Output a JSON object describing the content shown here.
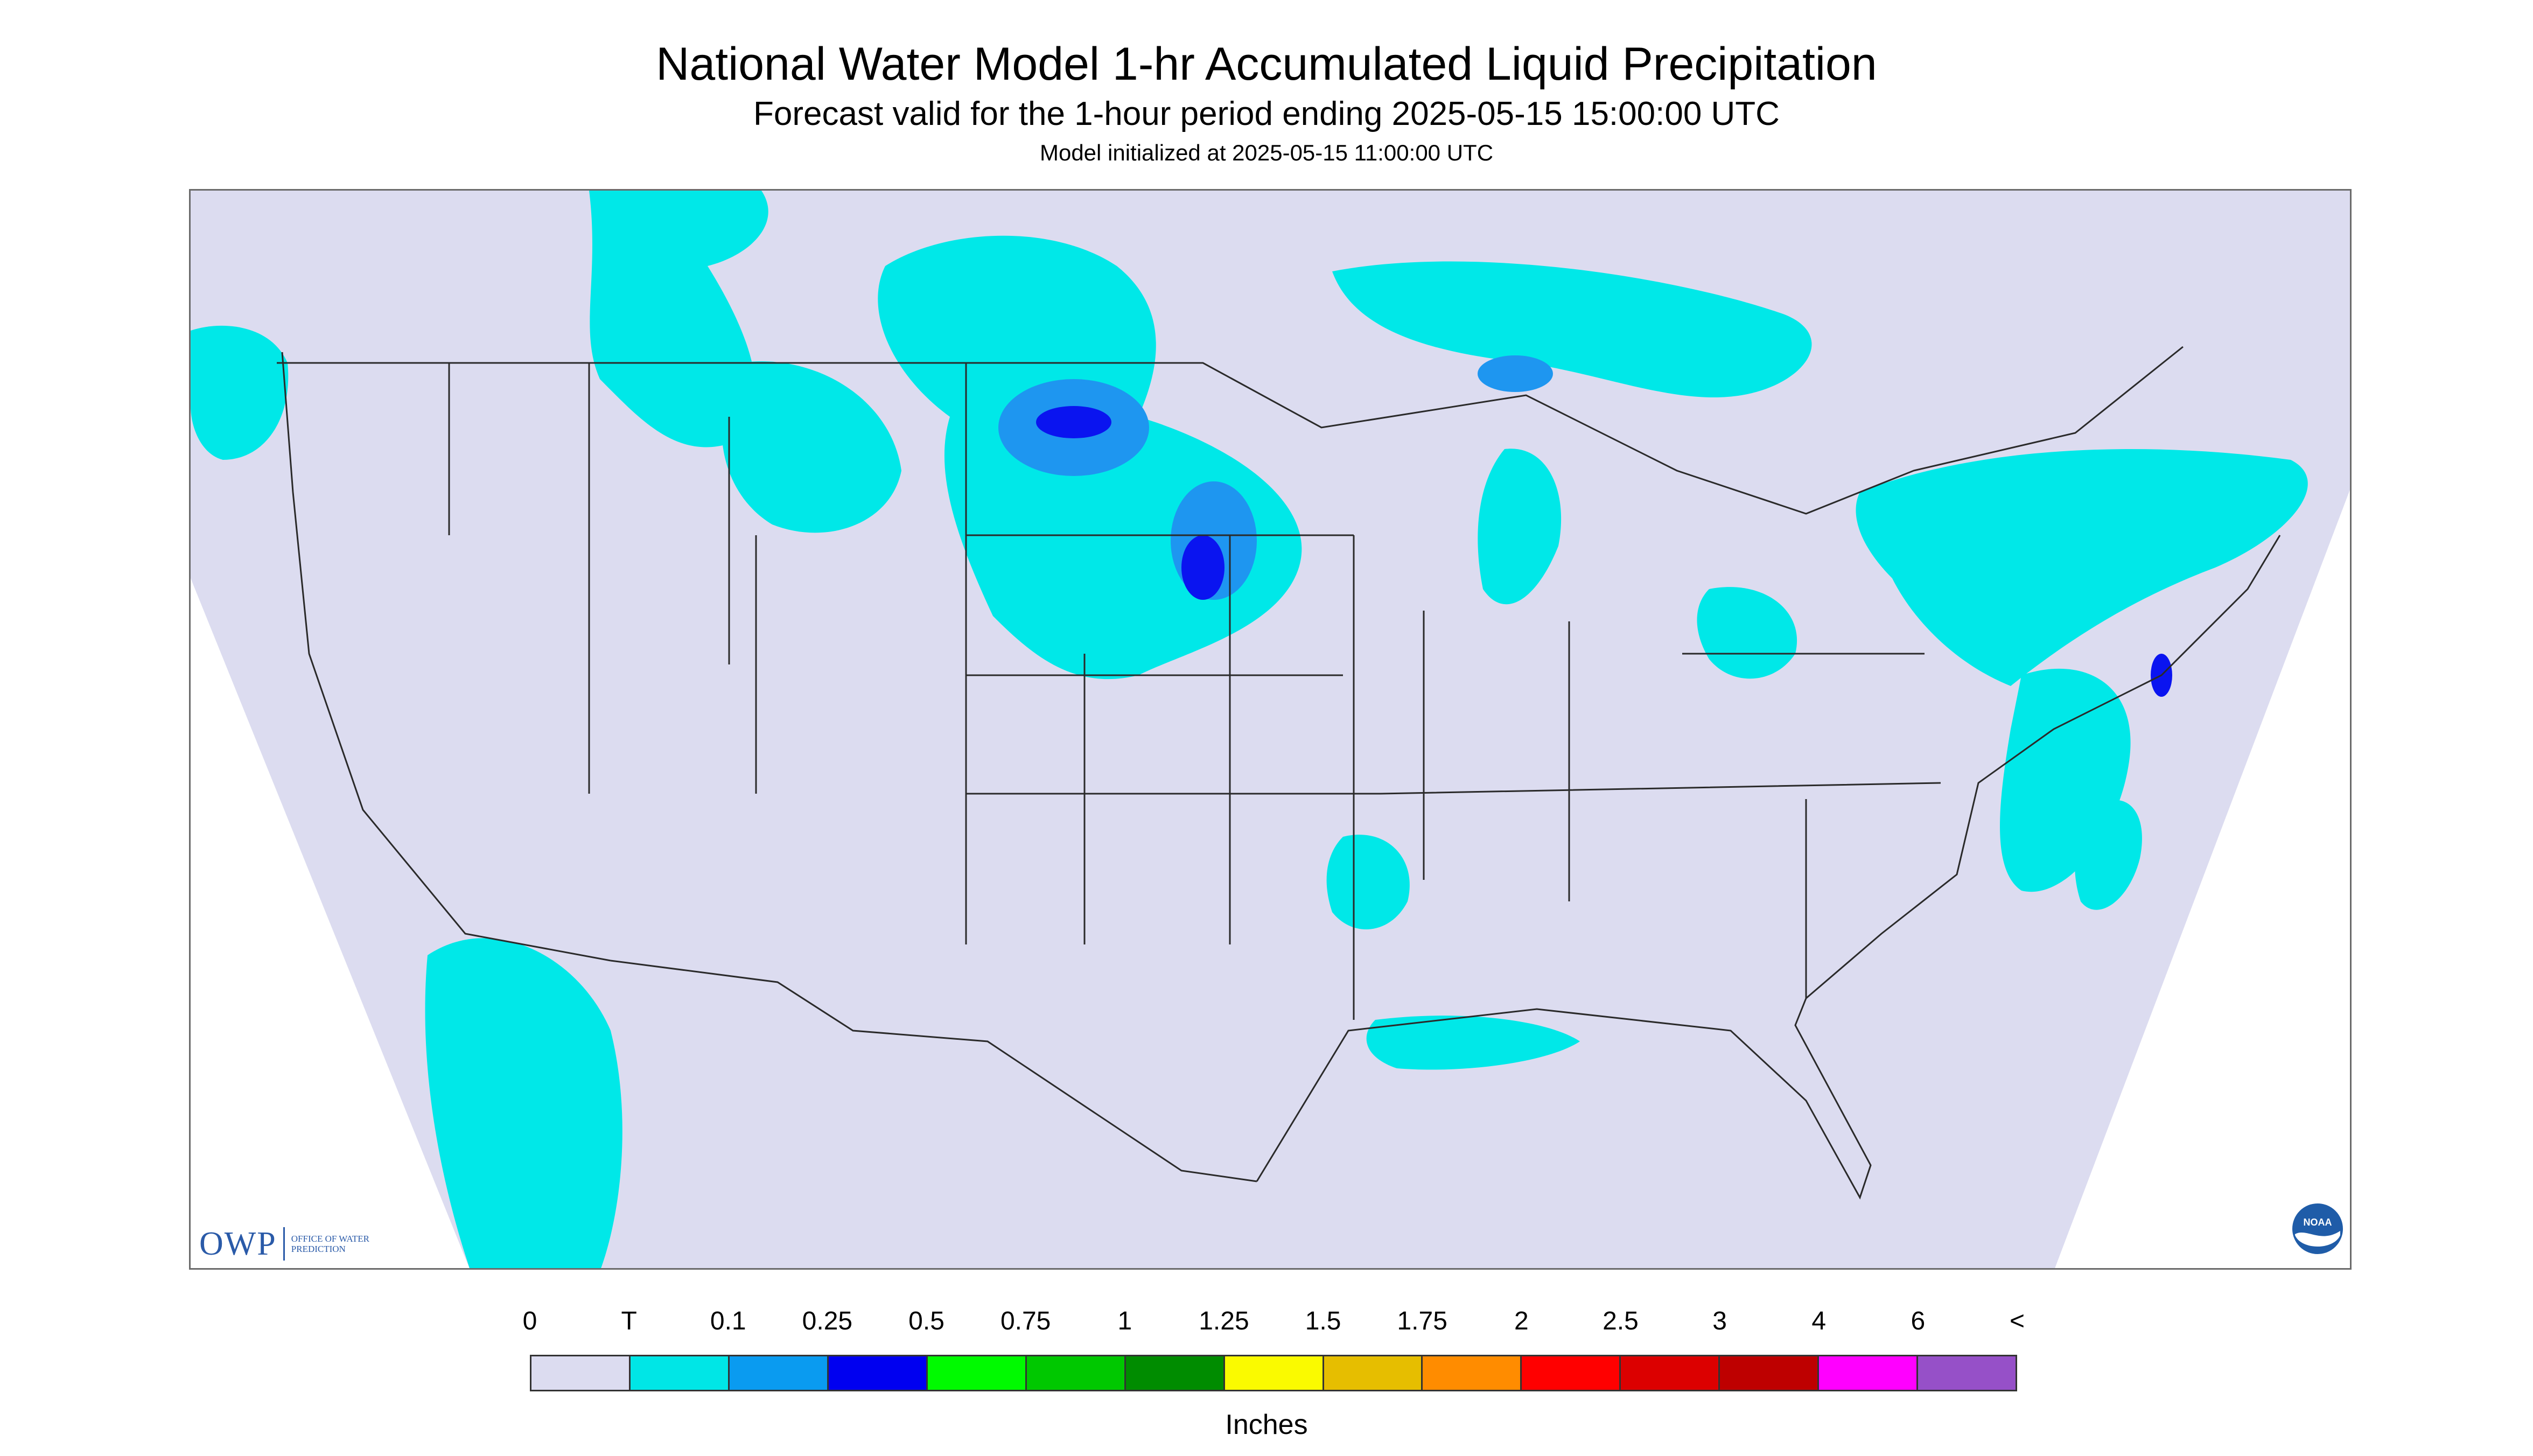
{
  "header": {
    "title": "National Water Model 1-hr Accumulated Liquid Precipitation",
    "subtitle": "Forecast valid for the 1-hour period ending 2025-05-15 15:00:00 UTC",
    "init_line": "Model initialized at 2025-05-15 11:00:00 UTC"
  },
  "map": {
    "region": "Continental United States",
    "colors": {
      "domain_fill": "#dcdcf0",
      "outside_fill": "#ffffff",
      "boundary": "#2a2a2a",
      "trace": "#00e8e8",
      "light_blue": "#1e96f0",
      "blue": "#0a14f0"
    }
  },
  "logos": {
    "owp": {
      "mark": "OWP",
      "text": "Office of Water Prediction"
    },
    "noaa": {
      "text": "NOAA"
    }
  },
  "legend": {
    "tick_labels": [
      "0",
      "T",
      "0.1",
      "0.25",
      "0.5",
      "0.75",
      "1",
      "1.25",
      "1.5",
      "1.75",
      "2",
      "2.5",
      "3",
      "4",
      "6",
      "<"
    ],
    "colors": [
      "#dcdcf0",
      "#00e6e6",
      "#0a9bf0",
      "#0000f0",
      "#00fa00",
      "#00c800",
      "#008c00",
      "#fafa00",
      "#e6be00",
      "#ff8c00",
      "#ff0000",
      "#dc0000",
      "#be0000",
      "#ff00ff",
      "#9650c8"
    ],
    "units": "Inches"
  }
}
